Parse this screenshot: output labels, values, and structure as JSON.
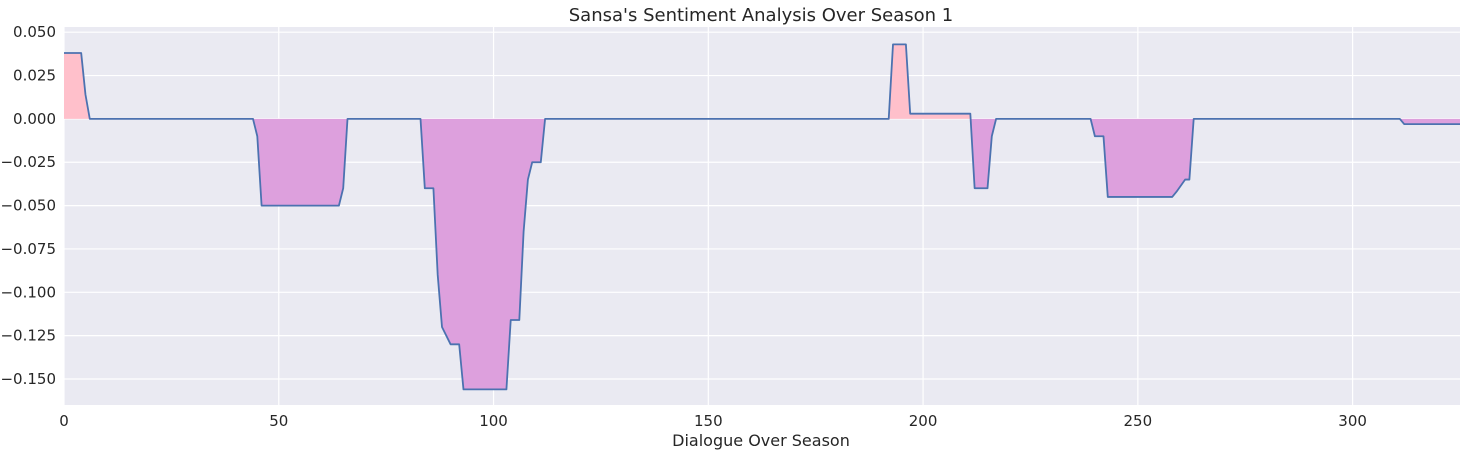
{
  "chart_data": {
    "type": "area",
    "title": "Sansa's Sentiment Analysis Over Season 1",
    "xlabel": "Dialogue Over Season",
    "ylabel": "",
    "xlim": [
      0,
      325
    ],
    "ylim": [
      -0.165,
      0.053
    ],
    "grid": true,
    "xticks": [
      0,
      50,
      100,
      150,
      200,
      250,
      300
    ],
    "xtick_labels": [
      "0",
      "50",
      "100",
      "150",
      "200",
      "250",
      "300"
    ],
    "yticks": [
      0.05,
      0.025,
      0.0,
      -0.025,
      -0.05,
      -0.075,
      -0.1,
      -0.125,
      -0.15
    ],
    "ytick_labels": [
      "0.050",
      "0.025",
      "0.000",
      "−0.025",
      "−0.050",
      "−0.075",
      "−0.100",
      "−0.125",
      "−0.150"
    ],
    "colors": {
      "line": "#4c72b0",
      "positive_fill": "#ffc0cb",
      "negative_fill": "#dda0dd",
      "plot_background": "#eaeaf2",
      "grid": "#ffffff"
    },
    "series": [
      {
        "x": [
          0,
          4,
          5,
          6,
          44,
          45,
          46,
          64,
          65,
          66,
          83,
          84,
          86,
          87,
          88,
          90,
          91,
          92,
          93,
          103,
          104,
          106,
          107,
          108,
          109,
          111,
          112,
          192,
          193,
          196,
          197,
          211,
          212,
          215,
          216,
          217,
          239,
          240,
          242,
          243,
          258,
          259,
          261,
          262,
          263,
          311,
          312,
          325
        ],
        "y": [
          0.038,
          0.038,
          0.014,
          0.0,
          0.0,
          -0.01,
          -0.05,
          -0.05,
          -0.04,
          0.0,
          0.0,
          -0.04,
          -0.04,
          -0.09,
          -0.12,
          -0.13,
          -0.13,
          -0.13,
          -0.156,
          -0.156,
          -0.116,
          -0.116,
          -0.065,
          -0.035,
          -0.025,
          -0.025,
          0.0,
          0.0,
          0.043,
          0.043,
          0.003,
          0.003,
          -0.04,
          -0.04,
          -0.01,
          0.0,
          0.0,
          -0.01,
          -0.01,
          -0.045,
          -0.045,
          -0.042,
          -0.035,
          -0.035,
          0.0,
          0.0,
          -0.003,
          -0.003
        ]
      }
    ]
  }
}
